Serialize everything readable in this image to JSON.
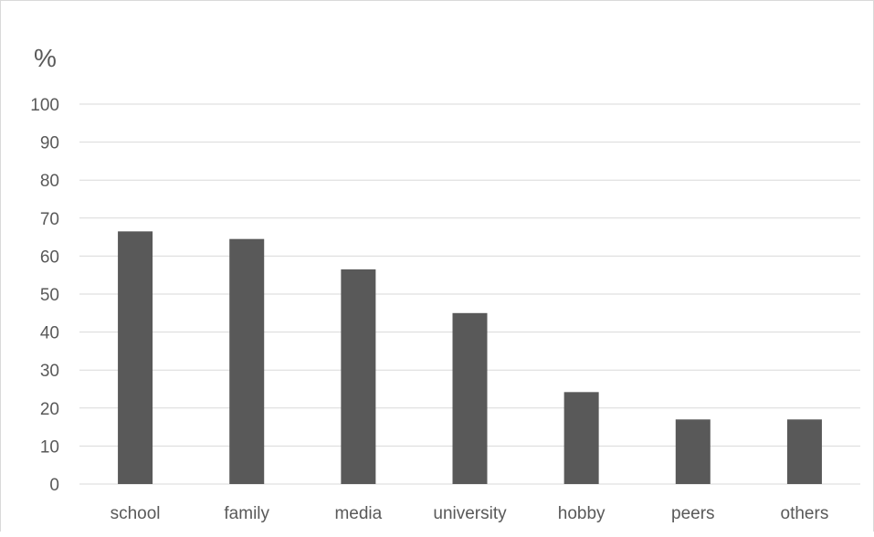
{
  "chart_data": {
    "type": "bar",
    "title": "",
    "ylabel": "%",
    "xlabel": "",
    "categories": [
      "school",
      "family",
      "media",
      "university",
      "hobby",
      "peers",
      "others"
    ],
    "values": [
      66.5,
      64.5,
      56.5,
      45,
      24.2,
      17,
      17
    ],
    "ylim": [
      0,
      100
    ],
    "yticks": [
      "0",
      "10",
      "20",
      "30",
      "40",
      "50",
      "60",
      "70",
      "80",
      "90",
      "100"
    ],
    "grid": true,
    "legend": "none",
    "colors": {
      "bar": "#595959",
      "grid": "#d9d9d9",
      "text": "#595959"
    }
  }
}
